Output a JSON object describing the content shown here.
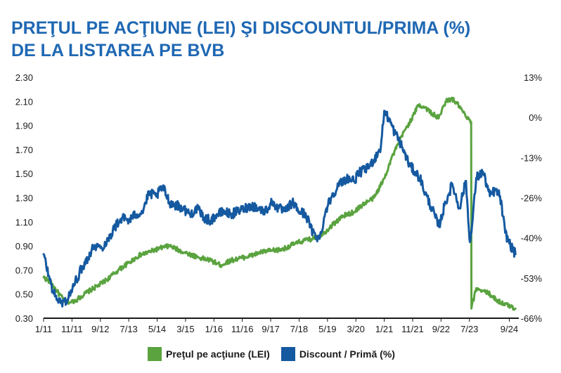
{
  "title_lines": [
    "PREŢUL PE ACŢIUNE (LEI) ŞI DISCOUNTUL/PRIMA (%)",
    "DE LA LISTAREA PE BVB"
  ],
  "chart_data": {
    "type": "line",
    "title": "PREŢUL PE ACŢIUNE (LEI) ŞI DISCOUNTUL/PRIMA (%) DE LA LISTAREA PE BVB",
    "x_tick_labels": [
      "1/11",
      "11/11",
      "9/12",
      "7/13",
      "5/14",
      "3/15",
      "1/16",
      "11/16",
      "9/17",
      "7/18",
      "5/19",
      "3/20",
      "1/21",
      "11/21",
      "9/22",
      "7/23",
      "9/24"
    ],
    "y_left": {
      "min": 0.3,
      "max": 2.3,
      "tick_labels": [
        "2.30",
        "2.10",
        "1.90",
        "1.70",
        "1.50",
        "1.30",
        "1.10",
        "0.90",
        "0.70",
        "0.50",
        "0.30"
      ]
    },
    "y_right": {
      "min": -66,
      "max": 13,
      "tick_labels": [
        "13%",
        "0%",
        "-13%",
        "-26%",
        "-40%",
        "-53%",
        "-66%"
      ]
    },
    "legend_position": "bottom",
    "grid": false,
    "series": [
      {
        "name": "Preţul pe acţiune (LEI)",
        "axis": "left",
        "color": "#5aa33f",
        "x": [
          2011.0,
          2011.2,
          2011.4,
          2011.6,
          2011.8,
          2012.0,
          2012.3,
          2012.6,
          2012.9,
          2013.2,
          2013.5,
          2013.8,
          2014.1,
          2014.4,
          2014.7,
          2015.0,
          2015.3,
          2015.6,
          2015.9,
          2016.2,
          2016.5,
          2016.8,
          2017.1,
          2017.4,
          2017.7,
          2018.0,
          2018.3,
          2018.6,
          2018.9,
          2019.2,
          2019.5,
          2019.8,
          2020.1,
          2020.4,
          2020.7,
          2021.0,
          2021.2,
          2021.4,
          2021.6,
          2021.8,
          2022.0,
          2022.2,
          2022.4,
          2022.6,
          2022.8,
          2023.0,
          2023.2,
          2023.4,
          2023.55,
          2023.56,
          2023.7,
          2023.9,
          2024.1,
          2024.3,
          2024.5,
          2024.7,
          2024.85
        ],
        "y": [
          0.64,
          0.6,
          0.52,
          0.45,
          0.43,
          0.46,
          0.52,
          0.57,
          0.63,
          0.7,
          0.76,
          0.82,
          0.85,
          0.88,
          0.9,
          0.86,
          0.83,
          0.8,
          0.78,
          0.74,
          0.78,
          0.8,
          0.82,
          0.85,
          0.86,
          0.87,
          0.91,
          0.94,
          0.96,
          1.0,
          1.08,
          1.15,
          1.18,
          1.25,
          1.3,
          1.46,
          1.62,
          1.74,
          1.86,
          1.95,
          2.07,
          2.05,
          2.0,
          1.96,
          2.1,
          2.12,
          2.06,
          1.97,
          1.93,
          0.38,
          0.55,
          0.53,
          0.5,
          0.45,
          0.42,
          0.4,
          0.38
        ]
      },
      {
        "name": "Discount / Primă (%)",
        "axis": "right",
        "color": "#1559a0",
        "x": [
          2011.0,
          2011.15,
          2011.3,
          2011.5,
          2011.7,
          2011.9,
          2012.1,
          2012.3,
          2012.5,
          2012.7,
          2012.9,
          2013.1,
          2013.3,
          2013.5,
          2013.7,
          2013.9,
          2014.1,
          2014.3,
          2014.5,
          2014.7,
          2014.9,
          2015.1,
          2015.3,
          2015.5,
          2015.7,
          2015.9,
          2016.1,
          2016.3,
          2016.5,
          2016.7,
          2016.9,
          2017.1,
          2017.3,
          2017.5,
          2017.7,
          2017.9,
          2018.1,
          2018.3,
          2018.5,
          2018.7,
          2018.9,
          2019.1,
          2019.3,
          2019.5,
          2019.7,
          2019.9,
          2020.1,
          2020.3,
          2020.5,
          2020.7,
          2020.9,
          2021.0,
          2021.15,
          2021.3,
          2021.45,
          2021.6,
          2021.75,
          2021.9,
          2022.05,
          2022.2,
          2022.4,
          2022.6,
          2022.8,
          2023.0,
          2023.2,
          2023.4,
          2023.5,
          2023.56,
          2023.7,
          2023.9,
          2024.1,
          2024.25,
          2024.4,
          2024.55,
          2024.7,
          2024.85
        ],
        "y": [
          -45,
          -52,
          -58,
          -61,
          -60,
          -55,
          -50,
          -46,
          -42,
          -43,
          -40,
          -36,
          -33,
          -34,
          -32,
          -31,
          -25,
          -26,
          -23,
          -28,
          -29,
          -30,
          -32,
          -30,
          -33,
          -34,
          -32,
          -31,
          -32,
          -31,
          -30,
          -29,
          -30,
          -31,
          -28,
          -30,
          -31,
          -28,
          -31,
          -32,
          -38,
          -40,
          -30,
          -25,
          -22,
          -20,
          -21,
          -18,
          -17,
          -14,
          -10,
          2,
          -1,
          -5,
          -8,
          -12,
          -16,
          -18,
          -20,
          -25,
          -30,
          -36,
          -28,
          -22,
          -30,
          -21,
          -40,
          -38,
          -20,
          -18,
          -26,
          -24,
          -26,
          -38,
          -42,
          -45
        ]
      }
    ]
  },
  "legend": [
    {
      "label": "Preţul pe acţiune (LEI)",
      "color": "#5aa33f"
    },
    {
      "label": "Discount / Primă (%)",
      "color": "#1559a0"
    }
  ]
}
